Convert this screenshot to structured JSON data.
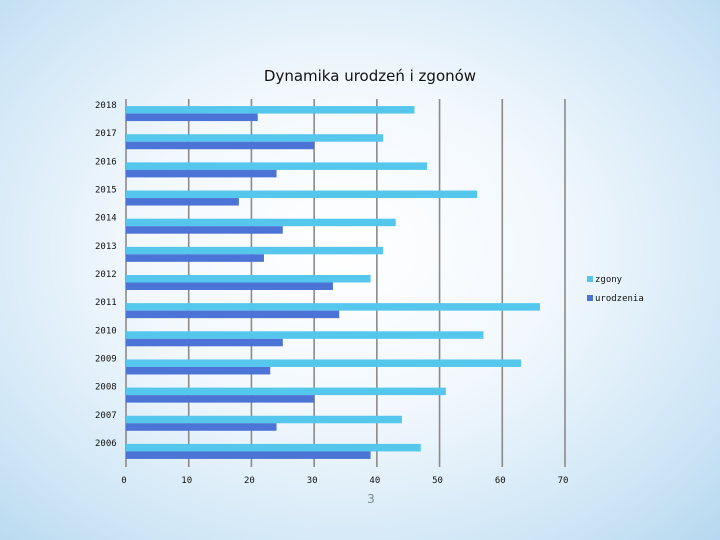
{
  "slide": {
    "number": "3"
  },
  "chart_data": {
    "type": "bar",
    "orientation": "horizontal",
    "title": "Dynamika urodzeń i zgonów",
    "xlabel": "",
    "ylabel": "",
    "categories": [
      "2006",
      "2007",
      "2008",
      "2009",
      "2010",
      "2011",
      "2012",
      "2013",
      "2014",
      "2015",
      "2016",
      "2017",
      "2018"
    ],
    "series": [
      {
        "name": "zgony",
        "color": "#55c6ec",
        "values": [
          47,
          44,
          51,
          63,
          57,
          66,
          39,
          41,
          43,
          56,
          48,
          41,
          46
        ]
      },
      {
        "name": "urodzenia",
        "color": "#4c73d6",
        "values": [
          39,
          24,
          30,
          23,
          25,
          34,
          33,
          22,
          25,
          18,
          24,
          30,
          21
        ]
      }
    ],
    "xlim": [
      0,
      70
    ],
    "xticks": [
      "0",
      "10",
      "20",
      "30",
      "40",
      "50",
      "60",
      "70"
    ],
    "grid": "vertical",
    "legend": "right"
  }
}
